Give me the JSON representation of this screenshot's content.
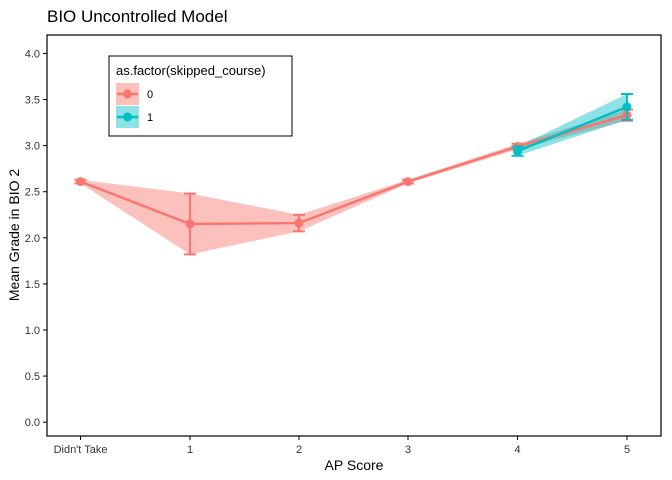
{
  "chart_data": {
    "type": "line",
    "title": "BIO Uncontrolled Model",
    "xlabel": "AP Score",
    "ylabel": "Mean Grade in BIO 2",
    "categories": [
      "Didn't Take",
      "1",
      "2",
      "3",
      "4",
      "5"
    ],
    "yticks": [
      "0.0",
      "0.5",
      "1.0",
      "1.5",
      "2.0",
      "2.5",
      "3.0",
      "3.5",
      "4.0"
    ],
    "ylim": [
      -0.15,
      4.2
    ],
    "grid": false,
    "legend": {
      "title": "as.factor(skipped_course)",
      "placement": "top-left"
    },
    "series": [
      {
        "name": "0",
        "color": "#F8766D",
        "points": [
          {
            "x": "Didn't Take",
            "y": 2.61,
            "lo": 2.59,
            "hi": 2.63
          },
          {
            "x": "1",
            "y": 2.15,
            "lo": 1.82,
            "hi": 2.48
          },
          {
            "x": "2",
            "y": 2.16,
            "lo": 2.07,
            "hi": 2.25
          },
          {
            "x": "3",
            "y": 2.61,
            "lo": 2.59,
            "hi": 2.63
          },
          {
            "x": "4",
            "y": 2.99,
            "lo": 2.96,
            "hi": 3.02
          },
          {
            "x": "5",
            "y": 3.33,
            "lo": 3.27,
            "hi": 3.39
          }
        ]
      },
      {
        "name": "1",
        "color": "#00BFC4",
        "points": [
          {
            "x": "4",
            "y": 2.94,
            "lo": 2.89,
            "hi": 2.99
          },
          {
            "x": "5",
            "y": 3.42,
            "lo": 3.28,
            "hi": 3.56
          }
        ]
      }
    ]
  }
}
